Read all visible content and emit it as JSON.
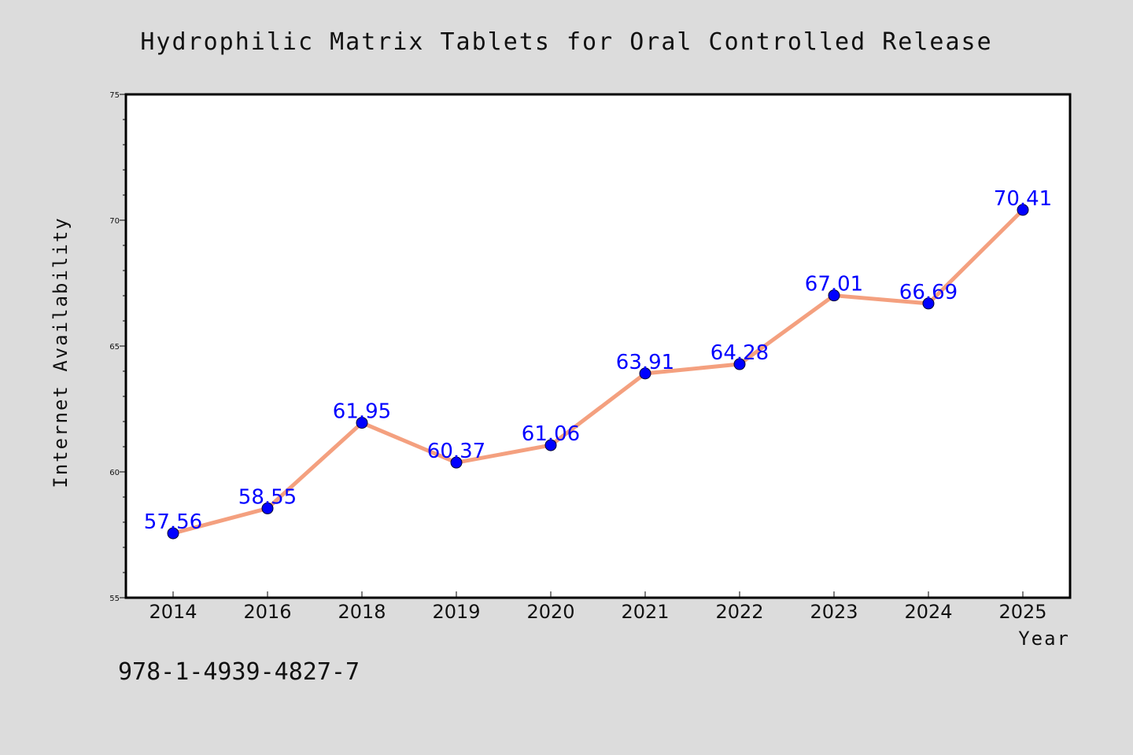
{
  "chart_data": {
    "type": "line",
    "title": "Hydrophilic Matrix Tablets for Oral Controlled Release",
    "xlabel": "Year",
    "ylabel": "Internet Availability",
    "categories": [
      "2014",
      "2016",
      "2018",
      "2019",
      "2020",
      "2021",
      "2022",
      "2023",
      "2024",
      "2025"
    ],
    "series": [
      {
        "values": [
          57.56,
          58.55,
          61.95,
          60.37,
          61.06,
          63.91,
          64.28,
          67.01,
          66.69,
          70.41
        ]
      }
    ],
    "data_labels": [
      "57.56",
      "58.55",
      "61.95",
      "60.37",
      "61.06",
      "63.91",
      "64.28",
      "67.01",
      "66.69",
      "70.41"
    ],
    "ylim": [
      55,
      75
    ],
    "yticks": [
      "55",
      "60",
      "65",
      "70",
      "75"
    ],
    "grid": false,
    "legend": "none",
    "colors": {
      "line": "#f4a07f",
      "marker": "#0000ff",
      "label": "#0000ff",
      "background": "#dcdcdc",
      "plot_background": "#ffffff"
    }
  },
  "footer": {
    "isbn": "978-1-4939-4827-7"
  }
}
